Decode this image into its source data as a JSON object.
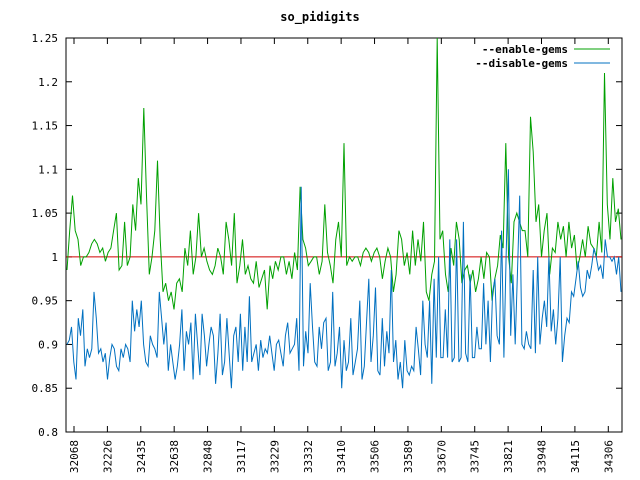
{
  "chart_data": {
    "type": "line",
    "title": "so_pidigits",
    "xlabel": "",
    "ylabel": "",
    "ylim": [
      0.8,
      1.25
    ],
    "y_ticks": [
      "0.8",
      "0.85",
      "0.9",
      "0.95",
      "1",
      "1.05",
      "1.1",
      "1.15",
      "1.2",
      "1.25"
    ],
    "x_tick_labels": [
      "32068",
      "32226",
      "32435",
      "32638",
      "32848",
      "33117",
      "33229",
      "33332",
      "33410",
      "33506",
      "33589",
      "33670",
      "33745",
      "33821",
      "33948",
      "34115",
      "34306"
    ],
    "reference_line": {
      "value": 1,
      "color": "#d00000"
    },
    "grid": false,
    "legend_position": "top-right",
    "series": [
      {
        "name": "--enable-gems",
        "color": "#00a000",
        "values": [
          0.985,
          1.03,
          1.07,
          1.03,
          1.02,
          0.99,
          1.0,
          1.0,
          1.005,
          1.015,
          1.02,
          1.015,
          1.005,
          1.01,
          0.995,
          1.005,
          1.01,
          1.03,
          1.05,
          0.985,
          0.99,
          1.04,
          0.99,
          1.0,
          1.06,
          1.03,
          1.09,
          1.06,
          1.17,
          1.07,
          0.98,
          1.0,
          1.03,
          1.11,
          1.02,
          0.96,
          0.97,
          0.95,
          0.96,
          0.94,
          0.97,
          0.975,
          0.96,
          1.01,
          0.99,
          1.03,
          0.98,
          1.0,
          1.05,
          1.0,
          1.01,
          0.995,
          0.985,
          0.98,
          0.99,
          1.01,
          1.0,
          0.98,
          1.04,
          1.02,
          0.99,
          1.05,
          0.97,
          0.99,
          1.02,
          0.98,
          0.99,
          0.975,
          0.97,
          0.995,
          0.965,
          0.975,
          0.985,
          0.94,
          0.99,
          0.975,
          0.995,
          0.985,
          1.0,
          1.0,
          0.98,
          0.995,
          0.975,
          1.005,
          0.985,
          1.08,
          1.02,
          1.01,
          0.99,
          0.995,
          1.0,
          1.0,
          0.98,
          0.995,
          1.06,
          1.005,
          0.99,
          0.97,
          1.02,
          1.04,
          1.0,
          1.13,
          0.99,
          1.0,
          0.995,
          1.0,
          1.0,
          0.99,
          1.005,
          1.01,
          1.005,
          0.995,
          1.005,
          1.01,
          1.0,
          0.975,
          0.995,
          1.01,
          1.0,
          0.96,
          0.98,
          1.03,
          1.02,
          0.99,
          1.005,
          0.98,
          1.03,
          0.99,
          1.02,
          0.995,
          1.04,
          0.96,
          0.95,
          0.98,
          0.995,
          1.25,
          1.02,
          1.03,
          0.98,
          0.96,
          1.01,
          0.99,
          1.04,
          1.02,
          0.97,
          0.985,
          0.99,
          0.97,
          0.985,
          0.96,
          0.975,
          1.0,
          0.975,
          1.005,
          1.0,
          0.95,
          0.975,
          0.99,
          1.025,
          1.01,
          1.13,
          1.0,
          0.97,
          1.04,
          1.05,
          1.04,
          1.03,
          1.03,
          1.0,
          1.16,
          1.12,
          1.04,
          1.06,
          1.0,
          1.03,
          1.05,
          0.98,
          1.01,
          1.005,
          1.04,
          1.02,
          1.035,
          1.0,
          1.04,
          1.01,
          1.025,
          0.985,
          1.0,
          1.02,
          1.0,
          1.035,
          1.015,
          1.01,
          1.0,
          1.04,
          1.005,
          1.21,
          1.06,
          1.02,
          1.09,
          1.04,
          1.055,
          1.02
        ]
      },
      {
        "name": "--disable-gems",
        "color": "#0070c0",
        "values": [
          0.9,
          0.905,
          0.92,
          0.88,
          0.86,
          0.93,
          0.91,
          0.94,
          0.875,
          0.895,
          0.885,
          0.895,
          0.96,
          0.93,
          0.89,
          0.895,
          0.88,
          0.89,
          0.86,
          0.885,
          0.9,
          0.895,
          0.875,
          0.87,
          0.895,
          0.885,
          0.9,
          0.895,
          0.88,
          0.95,
          0.915,
          0.94,
          0.92,
          0.95,
          0.9,
          0.88,
          0.875,
          0.91,
          0.9,
          0.895,
          0.885,
          0.96,
          0.93,
          0.9,
          0.925,
          0.87,
          0.9,
          0.88,
          0.86,
          0.875,
          0.9,
          0.94,
          0.87,
          0.915,
          0.9,
          0.925,
          0.86,
          0.935,
          0.9,
          0.865,
          0.935,
          0.91,
          0.875,
          0.9,
          0.92,
          0.91,
          0.855,
          0.89,
          0.935,
          0.865,
          0.88,
          0.93,
          0.89,
          0.85,
          0.91,
          0.92,
          0.88,
          0.935,
          0.87,
          0.92,
          0.88,
          0.955,
          0.88,
          0.89,
          0.9,
          0.87,
          0.905,
          0.885,
          0.895,
          0.89,
          0.91,
          0.89,
          0.87,
          0.9,
          0.905,
          0.89,
          0.875,
          0.91,
          0.925,
          0.89,
          0.895,
          0.9,
          0.93,
          0.87,
          1.08,
          0.875,
          0.915,
          0.89,
          0.97,
          0.92,
          0.88,
          0.875,
          0.92,
          0.895,
          0.925,
          0.93,
          0.87,
          0.88,
          0.96,
          0.875,
          0.89,
          0.92,
          0.85,
          0.905,
          0.87,
          0.88,
          0.93,
          0.865,
          0.88,
          0.895,
          0.95,
          0.86,
          0.875,
          0.925,
          0.975,
          0.88,
          0.91,
          0.965,
          0.87,
          0.865,
          0.93,
          0.875,
          0.915,
          0.89,
          0.985,
          0.88,
          0.905,
          0.86,
          0.88,
          0.85,
          0.905,
          0.87,
          0.865,
          0.875,
          0.87,
          0.92,
          0.895,
          0.865,
          0.95,
          0.9,
          0.885,
          0.95,
          0.855,
          0.975,
          0.885,
          1.0,
          0.885,
          0.885,
          0.94,
          0.885,
          1.02,
          0.88,
          0.885,
          1.02,
          0.88,
          0.885,
          1.04,
          0.89,
          0.88,
          0.98,
          0.885,
          0.885,
          0.92,
          0.895,
          0.895,
          0.97,
          0.9,
          0.95,
          0.88,
          0.96,
          0.975,
          0.91,
          0.9,
          1.03,
          0.885,
          1.0,
          1.1,
          0.91,
          0.98,
          0.9,
          0.98,
          1.07,
          0.9,
          0.895,
          0.915,
          0.9,
          0.895,
          0.985,
          0.89,
          1.0,
          0.9,
          0.93,
          0.95,
          0.92,
          1.0,
          0.915,
          0.94,
          0.9,
          0.93,
          1.0,
          0.88,
          0.91,
          0.93,
          0.925,
          0.96,
          0.955,
          0.975,
          0.995,
          0.965,
          0.955,
          0.96,
          0.985,
          0.975,
          0.99,
          1.01,
          1.0,
          0.985,
          0.99,
          0.975,
          1.02,
          1.0,
          1.0,
          0.995,
          1.0,
          0.98,
          1.0,
          0.96
        ]
      }
    ]
  }
}
